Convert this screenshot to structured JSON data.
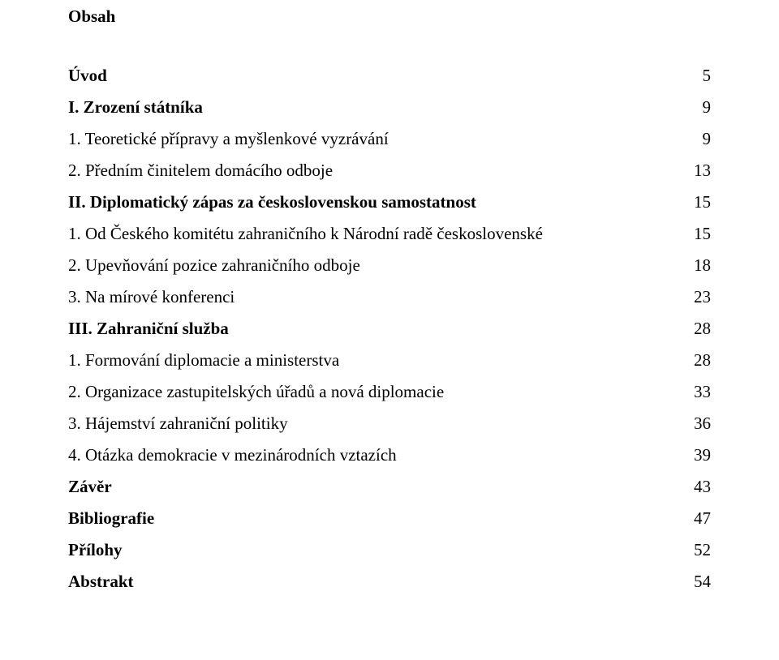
{
  "title": "Obsah",
  "entries": [
    {
      "label": "Úvod",
      "page": "5",
      "bold": true
    },
    {
      "label": "I. Zrození státníka",
      "page": "9",
      "bold": true
    },
    {
      "label": "1. Teoretické přípravy a myšlenkové vyzrávání",
      "page": "9",
      "bold": false
    },
    {
      "label": "2. Předním činitelem domácího odboje",
      "page": "13",
      "bold": false
    },
    {
      "label": "II. Diplomatický zápas za československou samostatnost",
      "page": "15",
      "bold": true
    },
    {
      "label": "1. Od Českého komitétu zahraničního k Národní radě československé",
      "page": "15",
      "bold": false
    },
    {
      "label": "2. Upevňování pozice zahraničního odboje",
      "page": "18",
      "bold": false
    },
    {
      "label": "3. Na mírové konferenci",
      "page": "23",
      "bold": false
    },
    {
      "label": "III. Zahraniční služba",
      "page": "28",
      "bold": true
    },
    {
      "label": "1. Formování diplomacie a ministerstva",
      "page": "28",
      "bold": false
    },
    {
      "label": "2. Organizace zastupitelských úřadů a nová diplomacie",
      "page": "33",
      "bold": false
    },
    {
      "label": "3. Hájemství zahraniční politiky",
      "page": "36",
      "bold": false
    },
    {
      "label": "4. Otázka demokracie v mezinárodních vztazích",
      "page": "39",
      "bold": false
    },
    {
      "label": "Závěr",
      "page": "43",
      "bold": true
    },
    {
      "label": "Bibliografie",
      "page": "47",
      "bold": true
    },
    {
      "label": "Přílohy",
      "page": "52",
      "bold": true
    },
    {
      "label": "Abstrakt",
      "page": "54",
      "bold": true
    }
  ]
}
